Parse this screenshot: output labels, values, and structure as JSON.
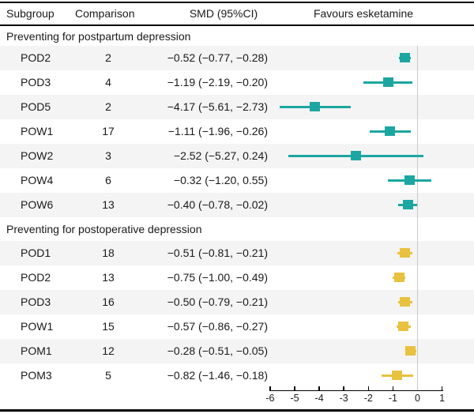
{
  "header": {
    "subgroup": "Subgroup",
    "comparison": "Comparison",
    "smd": "SMD (95%CI)",
    "favours": "Favours esketamine"
  },
  "chart_data": {
    "type": "forest",
    "direction_label": "Favours esketamine",
    "axis": {
      "min": -6,
      "max": 1,
      "ticks": [
        -6,
        -5,
        -4,
        -3,
        -2,
        -1,
        0,
        1
      ],
      "tick_labels": [
        "-6",
        "-5",
        "-4",
        "-3",
        "-2",
        "-1",
        "0",
        "1"
      ],
      "zero_reference": 0
    },
    "colors": {
      "postpartum_marker": "#1ca6a1",
      "postoperative_marker": "#e8c23e",
      "zero_line": "#c9c9c9",
      "alt_row_band": "#f4f4f4"
    },
    "sections": [
      {
        "title": "Preventing for postpartum depression",
        "color": "#1ca6a1",
        "rows": [
          {
            "subgroup": "POD2",
            "comparison": "2",
            "smd_text": "−0.52 (−0.77, −0.28)",
            "est": -0.52,
            "lo": -0.77,
            "hi": -0.28
          },
          {
            "subgroup": "POD3",
            "comparison": "4",
            "smd_text": "−1.19 (−2.19, −0.20)",
            "est": -1.19,
            "lo": -2.19,
            "hi": -0.2
          },
          {
            "subgroup": "POD5",
            "comparison": "2",
            "smd_text": "−4.17 (−5.61, −2.73)",
            "est": -4.17,
            "lo": -5.61,
            "hi": -2.73
          },
          {
            "subgroup": "POW1",
            "comparison": "17",
            "smd_text": "−1.11 (−1.96, −0.26)",
            "est": -1.11,
            "lo": -1.96,
            "hi": -0.26
          },
          {
            "subgroup": "POW2",
            "comparison": "3",
            "smd_text": "−2.52 (−5.27, 0.24)",
            "est": -2.52,
            "lo": -5.27,
            "hi": 0.24
          },
          {
            "subgroup": "POW4",
            "comparison": "6",
            "smd_text": "−0.32 (−1.20, 0.55)",
            "est": -0.32,
            "lo": -1.2,
            "hi": 0.55
          },
          {
            "subgroup": "POW6",
            "comparison": "13",
            "smd_text": "−0.40 (−0.78, −0.02)",
            "est": -0.4,
            "lo": -0.78,
            "hi": -0.02
          }
        ]
      },
      {
        "title": "Preventing for postoperative depression",
        "color": "#e8c23e",
        "rows": [
          {
            "subgroup": "POD1",
            "comparison": "18",
            "smd_text": "−0.51 (−0.81, −0.21)",
            "est": -0.51,
            "lo": -0.81,
            "hi": -0.21
          },
          {
            "subgroup": "POD2",
            "comparison": "13",
            "smd_text": "−0.75 (−1.00, −0.49)",
            "est": -0.75,
            "lo": -1.0,
            "hi": -0.49
          },
          {
            "subgroup": "POD3",
            "comparison": "16",
            "smd_text": "−0.50 (−0.79, −0.21)",
            "est": -0.5,
            "lo": -0.79,
            "hi": -0.21
          },
          {
            "subgroup": "POW1",
            "comparison": "15",
            "smd_text": "−0.57 (−0.86, −0.27)",
            "est": -0.57,
            "lo": -0.86,
            "hi": -0.27
          },
          {
            "subgroup": "POM1",
            "comparison": "12",
            "smd_text": "−0.28 (−0.51, −0.05)",
            "est": -0.28,
            "lo": -0.51,
            "hi": -0.05
          },
          {
            "subgroup": "POM3",
            "comparison": "5",
            "smd_text": "−0.82 (−1.46, −0.18)",
            "est": -0.82,
            "lo": -1.46,
            "hi": -0.18
          }
        ]
      }
    ]
  }
}
